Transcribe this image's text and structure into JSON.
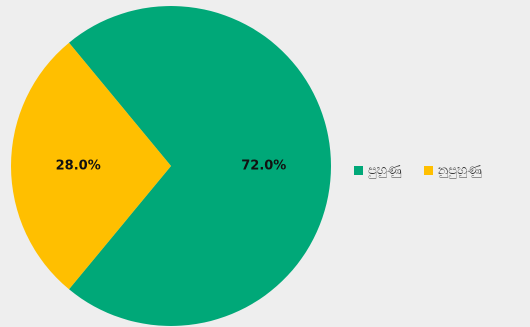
{
  "chart_data": {
    "type": "pie",
    "categories": [
      "පුහුණු",
      "නුපුහුණු"
    ],
    "values": [
      72.0,
      28.0
    ],
    "value_labels": [
      "72.0%",
      "28.0%"
    ],
    "colors": [
      "#00a878",
      "#ffbf00"
    ],
    "title": "",
    "legend_position": "right"
  },
  "legend": {
    "items": [
      {
        "label": "පුහුණු",
        "color": "#00a878"
      },
      {
        "label": "නුපුහුණු",
        "color": "#ffbf00"
      }
    ]
  }
}
